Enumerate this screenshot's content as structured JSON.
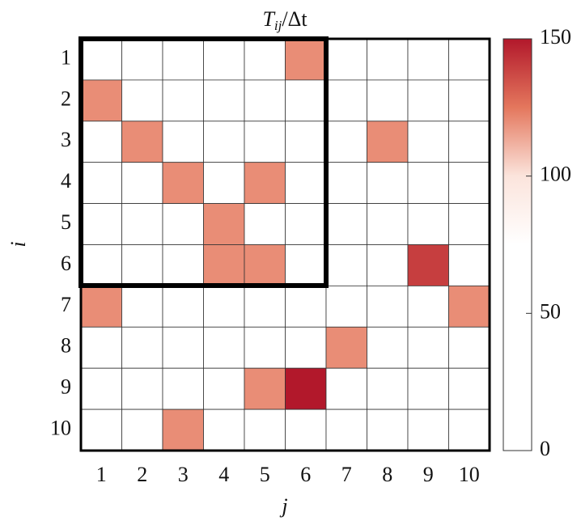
{
  "chart_data": {
    "type": "heatmap",
    "title": [
      "T",
      "ij",
      "/Δt"
    ],
    "xlabel": "j",
    "ylabel": "i",
    "x": [
      "1",
      "2",
      "3",
      "4",
      "5",
      "6",
      "7",
      "8",
      "9",
      "10"
    ],
    "y": [
      "1",
      "2",
      "3",
      "4",
      "5",
      "6",
      "7",
      "8",
      "9",
      "10"
    ],
    "values": [
      [
        0,
        0,
        0,
        0,
        0,
        120,
        0,
        0,
        0,
        0
      ],
      [
        120,
        0,
        0,
        0,
        0,
        0,
        0,
        0,
        0,
        0
      ],
      [
        0,
        120,
        0,
        0,
        0,
        0,
        0,
        120,
        0,
        0
      ],
      [
        0,
        0,
        120,
        0,
        120,
        0,
        0,
        0,
        0,
        0
      ],
      [
        0,
        0,
        0,
        120,
        0,
        0,
        0,
        0,
        0,
        0
      ],
      [
        0,
        0,
        0,
        120,
        120,
        0,
        0,
        0,
        140,
        0
      ],
      [
        120,
        0,
        0,
        0,
        0,
        0,
        0,
        0,
        0,
        120
      ],
      [
        0,
        0,
        0,
        0,
        0,
        0,
        120,
        0,
        0,
        0
      ],
      [
        0,
        0,
        0,
        0,
        120,
        150,
        0,
        0,
        0,
        0
      ],
      [
        0,
        0,
        120,
        0,
        0,
        0,
        0,
        0,
        0,
        0
      ]
    ],
    "zlim": [
      0,
      150
    ],
    "zticks": [
      0,
      50,
      100,
      150
    ],
    "colormap": [
      "#ffffff",
      "#ffffff",
      "#ffffff",
      "#ffffff",
      "#fbe4dc",
      "#e4775d",
      "#b2182b"
    ]
  }
}
